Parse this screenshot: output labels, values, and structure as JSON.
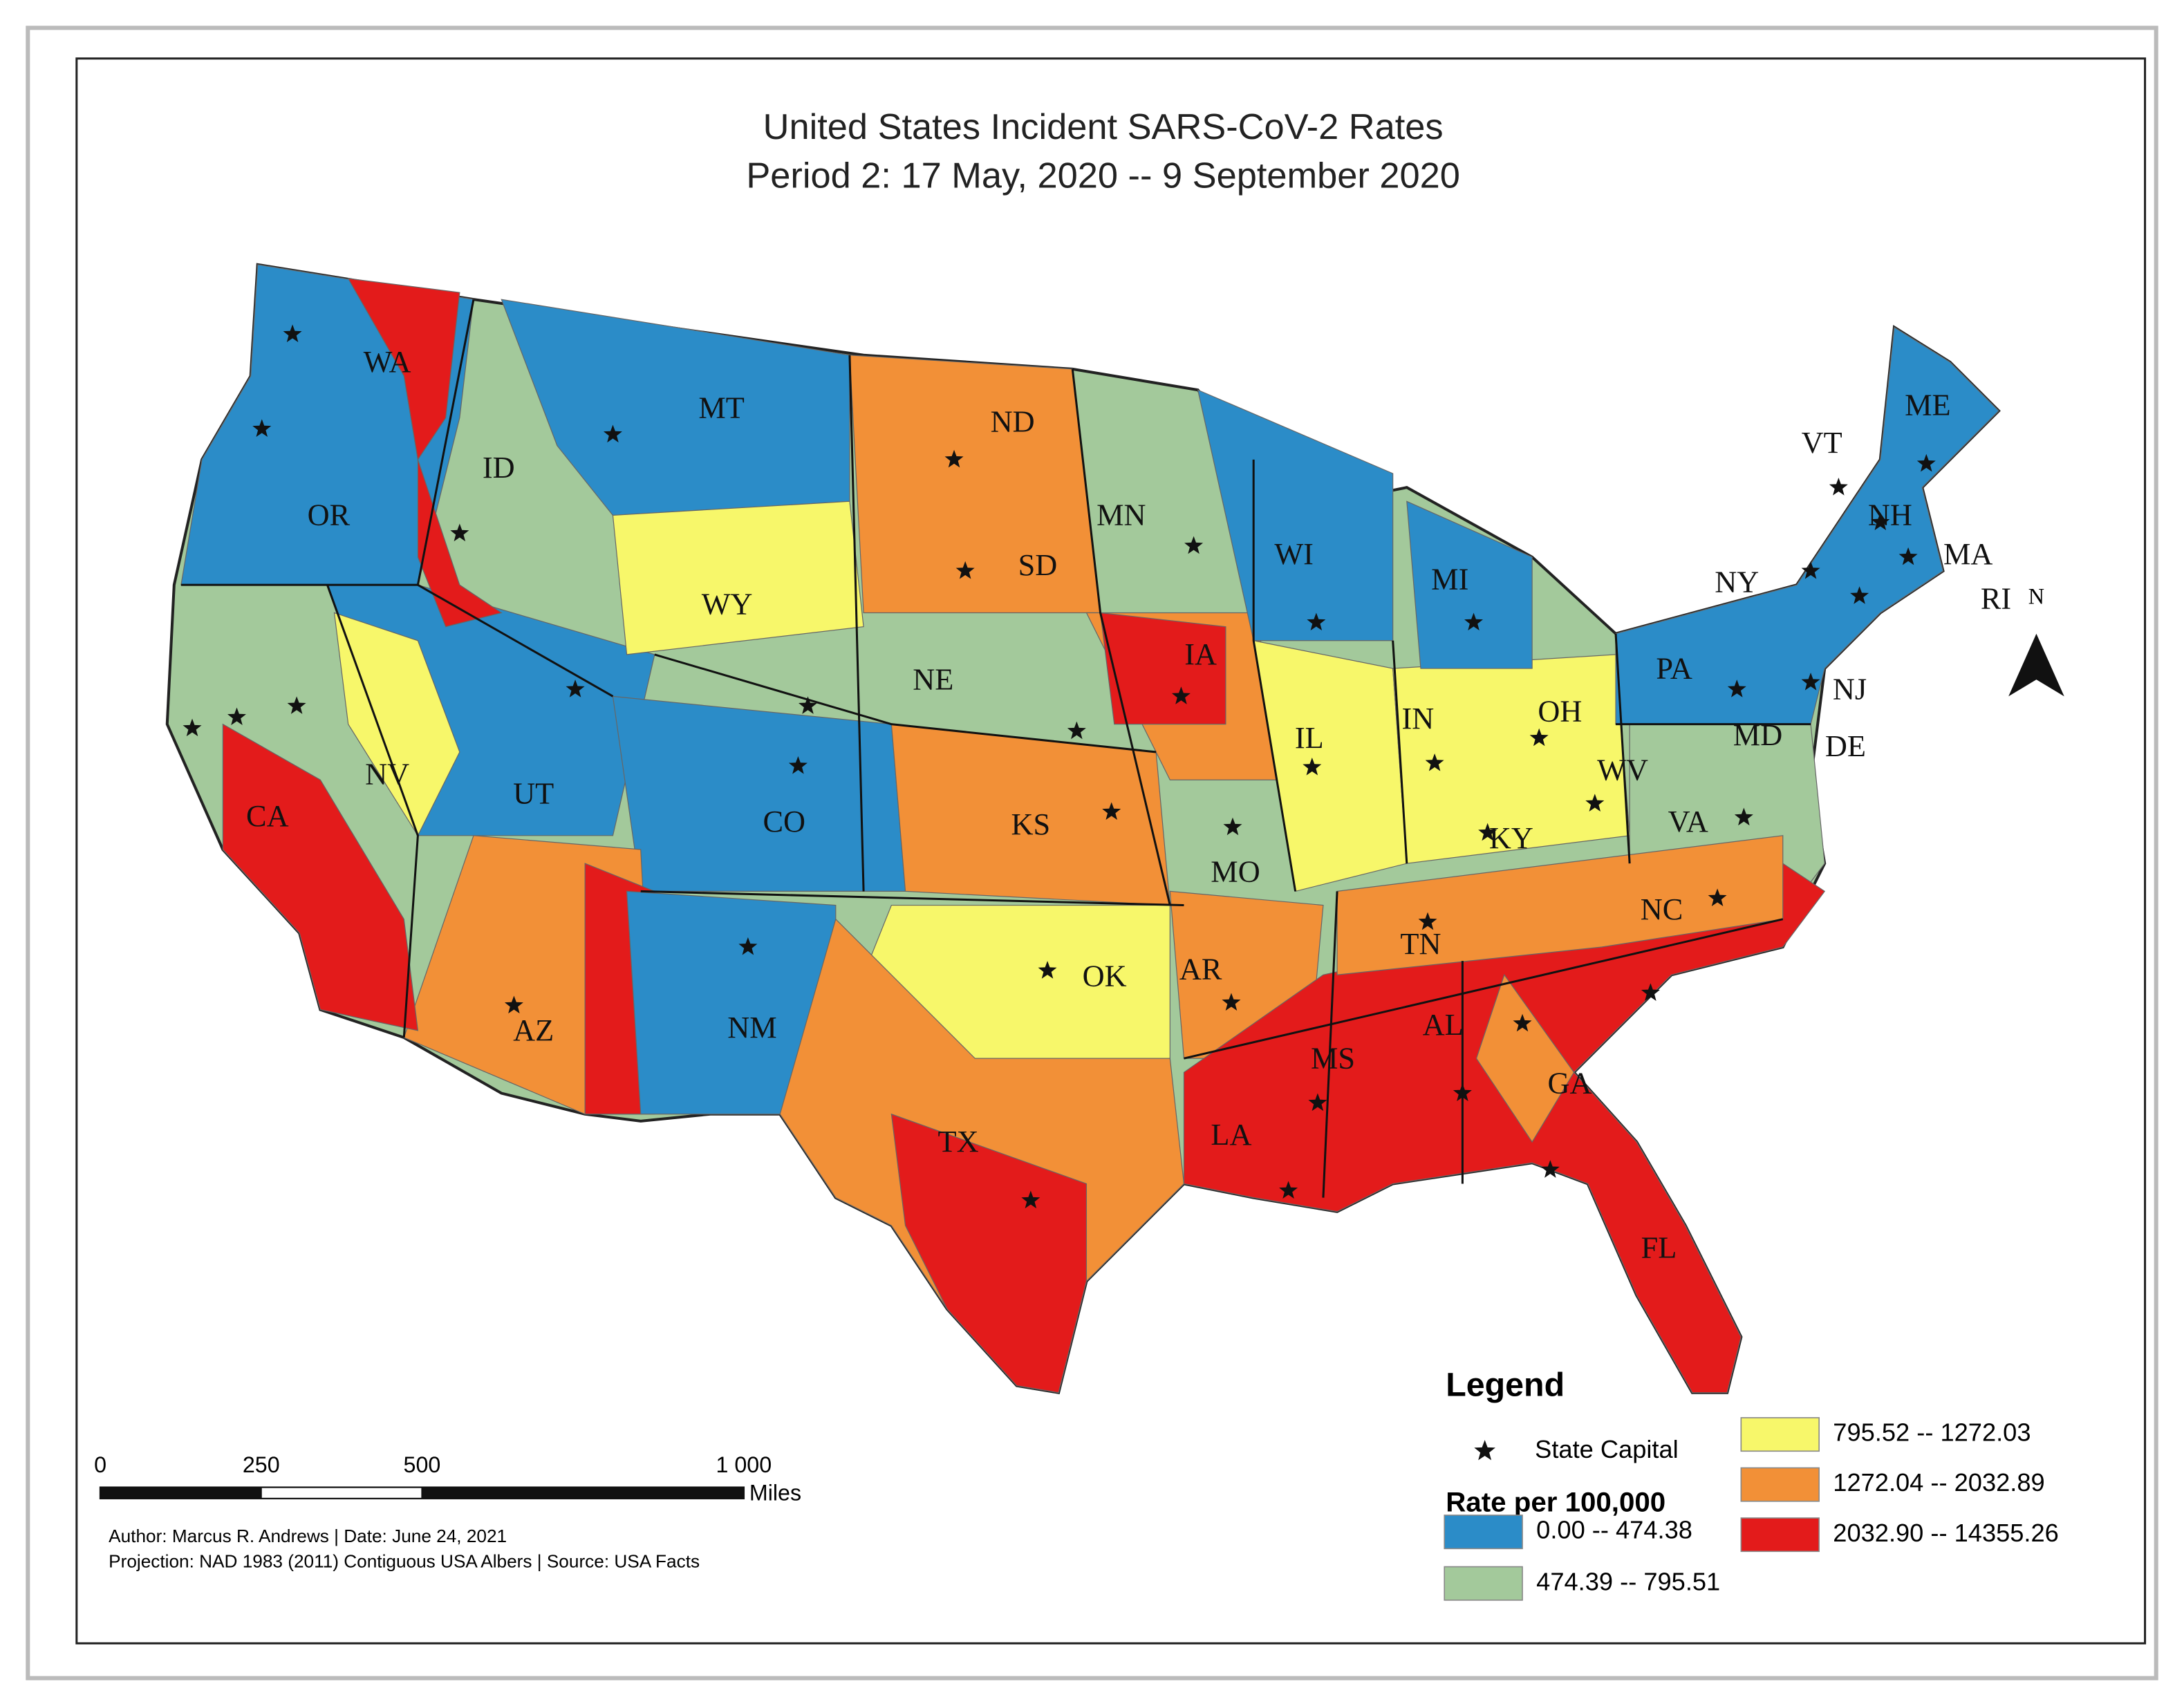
{
  "title": [
    "United States Incident SARS-CoV-2 Rates",
    "Period 2: 17 May, 2020  --  9 September 2020"
  ],
  "state_labels": [
    "WA",
    "MT",
    "ND",
    "ME",
    "VT",
    "ID",
    "OR",
    "MN",
    "NH",
    "WI",
    "SD",
    "MA",
    "NY",
    "MI",
    "RI",
    "WY",
    "IA",
    "PA",
    "NE",
    "NJ",
    "IN",
    "OH",
    "IL",
    "DE",
    "MD",
    "WV",
    "NV",
    "UT",
    "CA",
    "CO",
    "KS",
    "KY",
    "VA",
    "MO",
    "NC",
    "TN",
    "OK",
    "AR",
    "AZ",
    "NM",
    "AL",
    "MS",
    "GA",
    "LA",
    "TX",
    "FL"
  ],
  "north": "N",
  "legend": {
    "title": "Legend",
    "capital": "State Capital",
    "rate_title": "Rate per 100,000",
    "classes": [
      {
        "label": "0.00 -- 474.38",
        "color": "#2b8cc8"
      },
      {
        "label": "474.39 -- 795.51",
        "color": "#a3c99b"
      },
      {
        "label": "795.52 -- 1272.03",
        "color": "#f7f76a"
      },
      {
        "label": "1272.04 -- 2032.89",
        "color": "#f29037"
      },
      {
        "label": "2032.90 -- 14355.26",
        "color": "#e31b1b"
      }
    ]
  },
  "scale_bar": {
    "ticks": [
      0,
      250,
      500,
      {
        "value": 1000,
        "label": "1 000"
      }
    ],
    "unit": "Miles"
  },
  "credits": [
    "Author: Marcus R. Andrews | Date: June 24, 2021",
    "Projection: NAD 1983 (2011) Contiguous USA Albers  | Source: USA Facts"
  ]
}
